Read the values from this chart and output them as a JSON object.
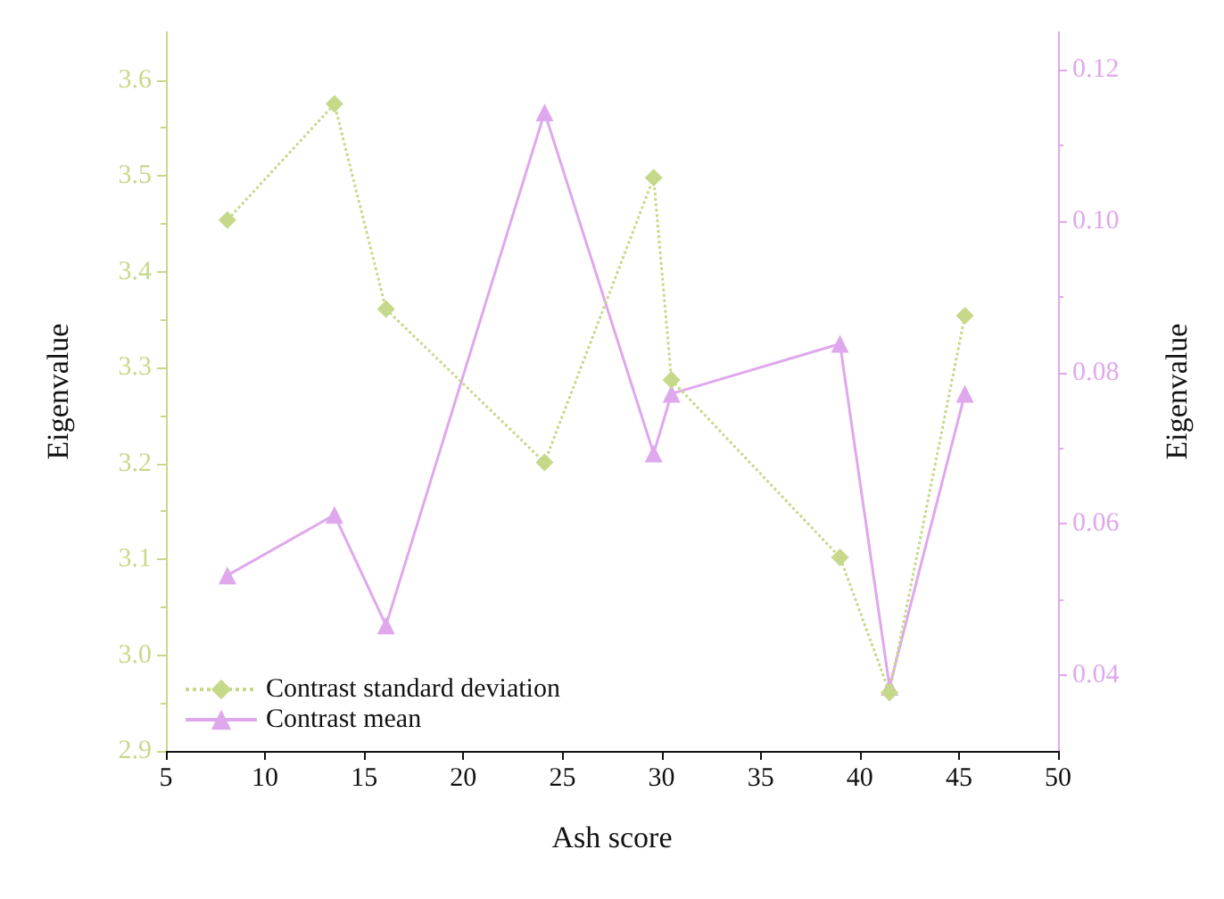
{
  "chart_data": {
    "type": "line",
    "xlabel": "Ash score",
    "ylabel": "Eigenvalue",
    "y2label": "Eigenvalue",
    "x": [
      8.1,
      13.5,
      16.1,
      24.1,
      29.6,
      30.5,
      39.0,
      41.5,
      45.3
    ],
    "series": [
      {
        "name": "Contrast standard deviation",
        "color": "#c6d98a",
        "marker": "diamond",
        "line_style": "dotted",
        "values": [
          3.454,
          3.575,
          3.361,
          3.201,
          3.498,
          3.287,
          3.102,
          2.961,
          3.354
        ]
      },
      {
        "name": "Contrast mean",
        "color": "#e0a8ec",
        "marker": "triangle",
        "line_style": "solid",
        "axis": "y2",
        "values": [
          0.0532,
          0.0612,
          0.0466,
          0.1144,
          0.0693,
          0.0772,
          0.0838,
          0.0385,
          0.0772
        ]
      }
    ],
    "xlim": [
      5,
      50
    ],
    "xticks": [
      5,
      10,
      15,
      20,
      25,
      30,
      35,
      40,
      45,
      50
    ],
    "ylim": [
      2.9,
      3.65
    ],
    "yticks": [
      2.9,
      {
        "value": 3,
        "label": "3.0"
      },
      3.1,
      3.2,
      3.3,
      3.4,
      3.5,
      3.6
    ],
    "y2lim": [
      0.03,
      0.125
    ],
    "y2ticks": [
      0.04,
      0.06,
      0.08,
      {
        "value": 0.1,
        "label": "0.10"
      },
      0.12
    ],
    "grid": false,
    "legend": "bottom left"
  }
}
